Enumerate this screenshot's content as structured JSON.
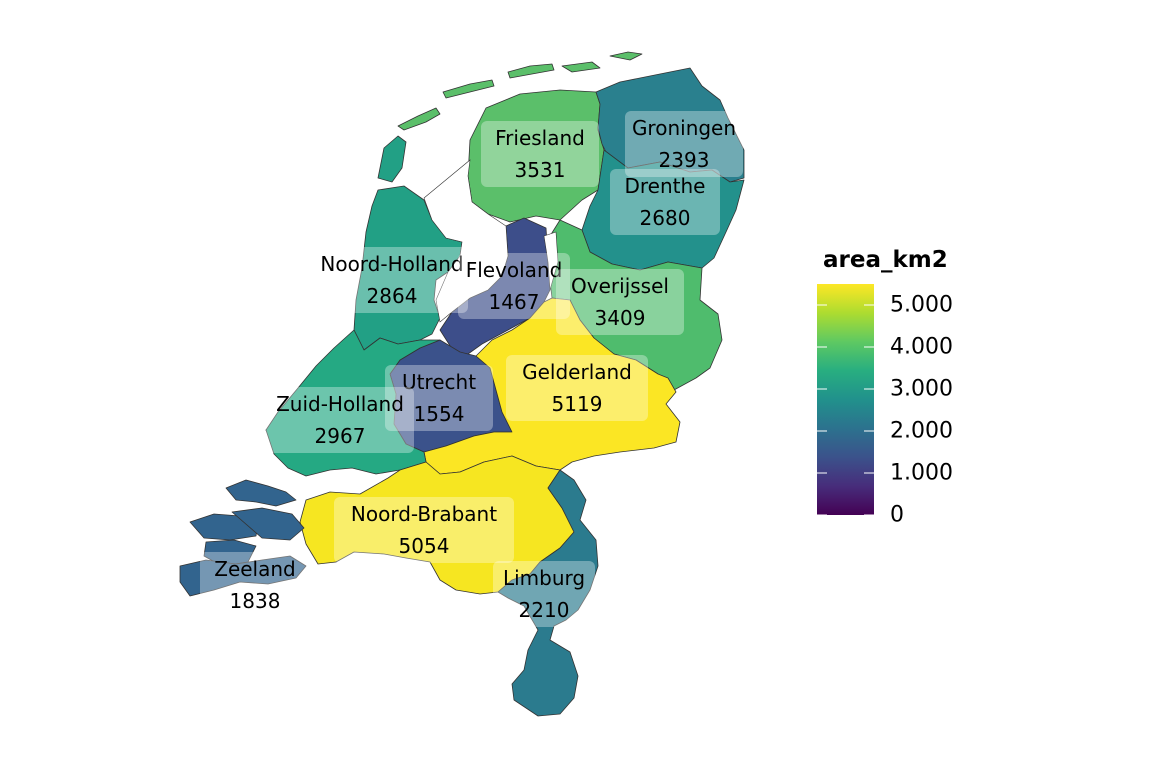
{
  "legend": {
    "title": "area_km2",
    "min": 0,
    "max": 5500,
    "ticks": [
      {
        "value": 5000,
        "label": "5.000"
      },
      {
        "value": 4000,
        "label": "4.000"
      },
      {
        "value": 3000,
        "label": "3.000"
      },
      {
        "value": 2000,
        "label": "2.000"
      },
      {
        "value": 1000,
        "label": "1.000"
      },
      {
        "value": 0,
        "label": "0"
      }
    ],
    "palette": [
      "#440154",
      "#472d7b",
      "#3b528b",
      "#2c728e",
      "#21918c",
      "#28ae80",
      "#5ec962",
      "#addc30",
      "#fde725"
    ]
  },
  "provinces": [
    {
      "id": "friesland",
      "name": "Friesland",
      "area_km2": "3531",
      "value": 3531,
      "color": "#5bbf6a"
    },
    {
      "id": "groningen",
      "name": "Groningen",
      "area_km2": "2393",
      "value": 2393,
      "color": "#2a808e"
    },
    {
      "id": "drenthe",
      "name": "Drenthe",
      "area_km2": "2680",
      "value": 2680,
      "color": "#23918c"
    },
    {
      "id": "noord-holland",
      "name": "Noord-Holland",
      "area_km2": "2864",
      "value": 2864,
      "color": "#22a085"
    },
    {
      "id": "flevoland",
      "name": "Flevoland",
      "area_km2": "1467",
      "value": 1467,
      "color": "#3d4e8a"
    },
    {
      "id": "overijssel",
      "name": "Overijssel",
      "area_km2": "3409",
      "value": 3409,
      "color": "#4fbc6d"
    },
    {
      "id": "gelderland",
      "name": "Gelderland",
      "area_km2": "5119",
      "value": 5119,
      "color": "#fbe624"
    },
    {
      "id": "utrecht",
      "name": "Utrecht",
      "area_km2": "1554",
      "value": 1554,
      "color": "#3b528b"
    },
    {
      "id": "zuid-holland",
      "name": "Zuid-Holland",
      "area_km2": "2967",
      "value": 2967,
      "color": "#25a983"
    },
    {
      "id": "noord-brabant",
      "name": "Noord-Brabant",
      "area_km2": "5054",
      "value": 5054,
      "color": "#f6e621"
    },
    {
      "id": "zeeland",
      "name": "Zeeland",
      "area_km2": "1838",
      "value": 1838,
      "color": "#32648e"
    },
    {
      "id": "limburg",
      "name": "Limburg",
      "area_km2": "2210",
      "value": 2210,
      "color": "#2b7b8e"
    }
  ]
}
